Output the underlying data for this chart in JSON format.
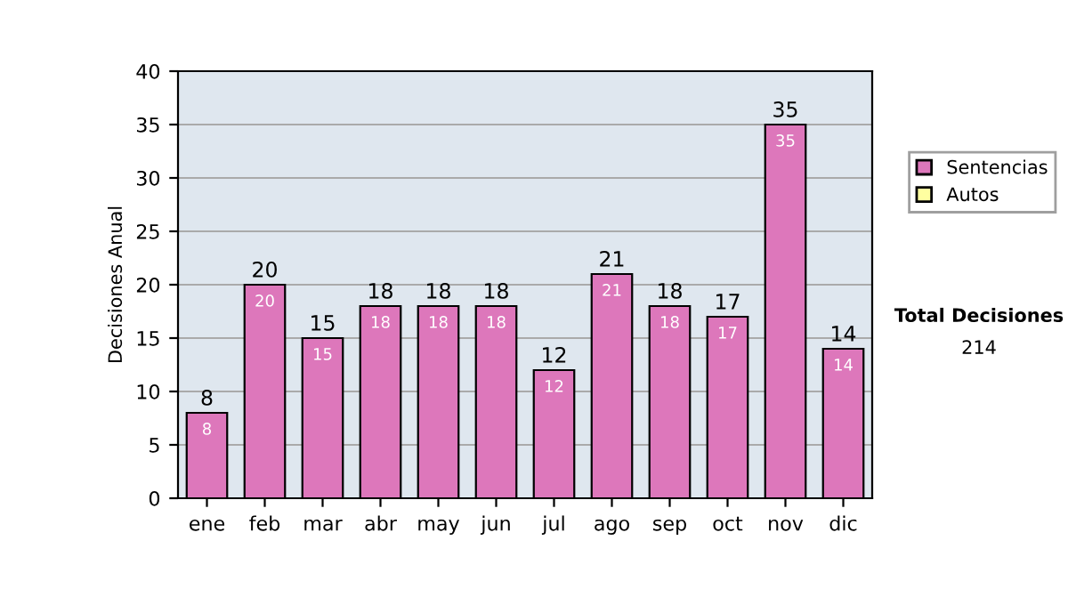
{
  "chart_data": {
    "type": "bar",
    "stacked": true,
    "ylabel": "Decisiones Anual",
    "categories": [
      "ene",
      "feb",
      "mar",
      "abr",
      "may",
      "jun",
      "jul",
      "ago",
      "sep",
      "oct",
      "nov",
      "dic"
    ],
    "series": [
      {
        "name": "Sentencias",
        "color": "#dd77bb",
        "values": [
          8,
          20,
          15,
          18,
          18,
          18,
          12,
          21,
          18,
          17,
          35,
          14
        ],
        "value_labels": [
          "8",
          "20",
          "15",
          "18",
          "18",
          "18",
          "12",
          "21",
          "18",
          "17",
          "35",
          "14"
        ]
      },
      {
        "name": "Autos",
        "color": "#ffffa0",
        "values": [
          null,
          null,
          null,
          null,
          null,
          null,
          null,
          null,
          null,
          null,
          null,
          null
        ]
      }
    ],
    "totals": [
      "8",
      "20",
      "15",
      "18",
      "18",
      "18",
      "12",
      "21",
      "18",
      "17",
      "35",
      "14"
    ],
    "ylim": [
      0,
      40
    ],
    "yticks": [
      0,
      5,
      10,
      15,
      20,
      25,
      30,
      35,
      40
    ],
    "grid": "y",
    "legend": "right",
    "annotations": [
      "Total Decisiones",
      "214"
    ]
  }
}
